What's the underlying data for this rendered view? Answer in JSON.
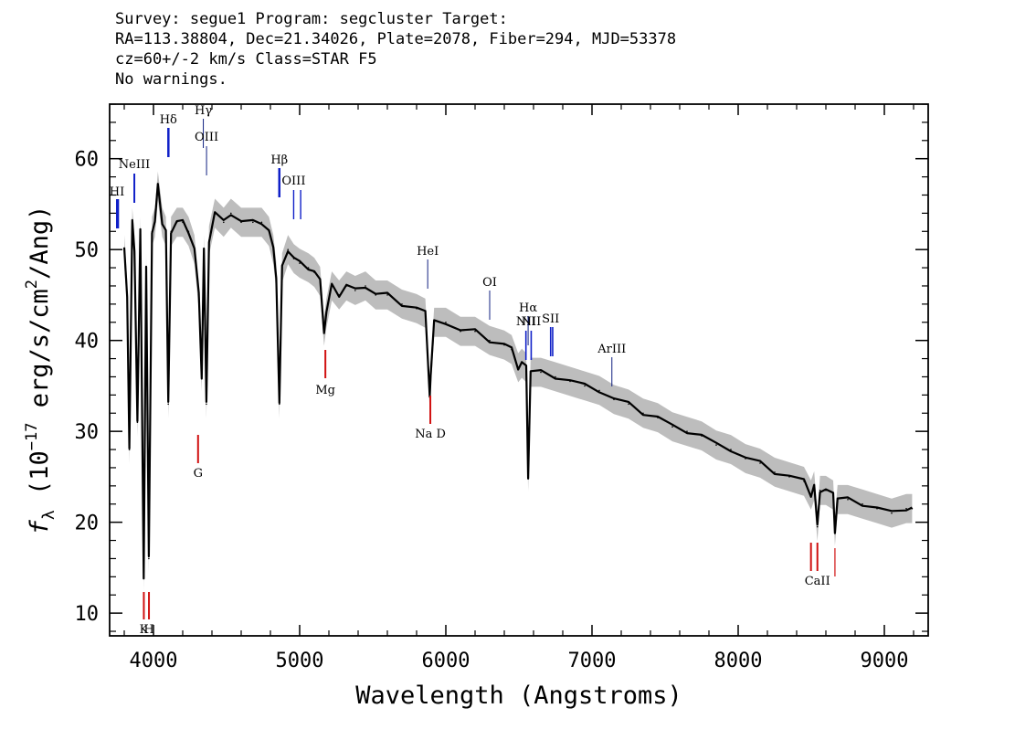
{
  "header": {
    "line1": "Survey: segue1 Program: segcluster Target:",
    "line2": "RA=113.38804, Dec=21.34026, Plate=2078, Fiber=294, MJD=53378",
    "line3": "cz=60+/-2 km/s Class=STAR F5",
    "line4": "No warnings."
  },
  "colors": {
    "spectrum": "#000000",
    "error_band": "#bdbdbd",
    "emission_marker": "#1020c8",
    "absorption_marker": "#d01010"
  },
  "chart_data": {
    "type": "line",
    "xlabel": "Wavelength (Angstroms)",
    "ylabel": "f_λ (10^-17 erg/s/cm^2/Ang)",
    "xlim": [
      3700,
      9300
    ],
    "ylim": [
      7.5,
      66
    ],
    "xticks": [
      4000,
      5000,
      6000,
      7000,
      8000,
      9000
    ],
    "yticks": [
      10,
      20,
      30,
      40,
      50,
      60
    ],
    "series": [
      {
        "values": [
          [
            3800,
            50
          ],
          [
            3820,
            45
          ],
          [
            3835,
            28
          ],
          [
            3855,
            53
          ],
          [
            3870,
            50
          ],
          [
            3890,
            31
          ],
          [
            3910,
            52
          ],
          [
            3933,
            14
          ],
          [
            3950,
            48
          ],
          [
            3968,
            16
          ],
          [
            3990,
            52
          ],
          [
            4010,
            53
          ],
          [
            4030,
            57
          ],
          [
            4060,
            53
          ],
          [
            4085,
            52
          ],
          [
            4101,
            33
          ],
          [
            4120,
            52
          ],
          [
            4160,
            53
          ],
          [
            4200,
            53
          ],
          [
            4240,
            52
          ],
          [
            4280,
            50
          ],
          [
            4310,
            45
          ],
          [
            4330,
            36
          ],
          [
            4345,
            50
          ],
          [
            4362,
            33
          ],
          [
            4380,
            51
          ],
          [
            4420,
            54
          ],
          [
            4480,
            53
          ],
          [
            4530,
            54
          ],
          [
            4600,
            53
          ],
          [
            4680,
            53
          ],
          [
            4740,
            53
          ],
          [
            4790,
            52
          ],
          [
            4820,
            50
          ],
          [
            4840,
            47
          ],
          [
            4861,
            33
          ],
          [
            4880,
            48
          ],
          [
            4920,
            50
          ],
          [
            4960,
            49
          ],
          [
            5000,
            48.5
          ],
          [
            5060,
            48
          ],
          [
            5100,
            47.5
          ],
          [
            5140,
            46.5
          ],
          [
            5167,
            41
          ],
          [
            5183,
            43
          ],
          [
            5220,
            46
          ],
          [
            5270,
            45
          ],
          [
            5320,
            46
          ],
          [
            5380,
            45.5
          ],
          [
            5450,
            46
          ],
          [
            5520,
            45
          ],
          [
            5600,
            45
          ],
          [
            5700,
            44
          ],
          [
            5800,
            43.5
          ],
          [
            5860,
            43
          ],
          [
            5890,
            34
          ],
          [
            5896,
            36
          ],
          [
            5920,
            42
          ],
          [
            6000,
            42
          ],
          [
            6100,
            41
          ],
          [
            6200,
            41
          ],
          [
            6300,
            40
          ],
          [
            6400,
            39.5
          ],
          [
            6450,
            39
          ],
          [
            6495,
            37
          ],
          [
            6520,
            37.5
          ],
          [
            6550,
            37
          ],
          [
            6563,
            25
          ],
          [
            6580,
            36.5
          ],
          [
            6650,
            36.5
          ],
          [
            6750,
            36
          ],
          [
            6850,
            35.5
          ],
          [
            6950,
            35
          ],
          [
            7050,
            34.5
          ],
          [
            7150,
            33.5
          ],
          [
            7250,
            33
          ],
          [
            7350,
            32
          ],
          [
            7450,
            31.5
          ],
          [
            7550,
            30.5
          ],
          [
            7650,
            30
          ],
          [
            7750,
            29.5
          ],
          [
            7850,
            28.5
          ],
          [
            7950,
            28
          ],
          [
            8050,
            27
          ],
          [
            8150,
            26.5
          ],
          [
            8250,
            25.5
          ],
          [
            8350,
            25
          ],
          [
            8450,
            24.5
          ],
          [
            8498,
            23
          ],
          [
            8520,
            24
          ],
          [
            8542,
            19.5
          ],
          [
            8560,
            23.5
          ],
          [
            8600,
            23.5
          ],
          [
            8650,
            23
          ],
          [
            8662,
            19
          ],
          [
            8680,
            22.5
          ],
          [
            8750,
            22.5
          ],
          [
            8850,
            22
          ],
          [
            8950,
            21.5
          ],
          [
            9050,
            21
          ],
          [
            9150,
            21.5
          ],
          [
            9190,
            21.5
          ]
        ]
      }
    ],
    "emission_lines": [
      {
        "label": "HI",
        "wave": 3750,
        "color": "blue"
      },
      {
        "label": "NeIII",
        "wave": 3869,
        "color": "blue"
      },
      {
        "label": "Hδ",
        "wave": 4102,
        "color": "blue"
      },
      {
        "label": "Hγ",
        "wave": 4341,
        "color": "navy"
      },
      {
        "label": "OIII",
        "wave": 4363,
        "color": "navy"
      },
      {
        "label": "Hβ",
        "wave": 4861,
        "color": "blue"
      },
      {
        "label": "OIII",
        "wave": 4959,
        "color": "blue"
      },
      {
        "label": "HeI",
        "wave": 5876,
        "color": "navy"
      },
      {
        "label": "OI",
        "wave": 6300,
        "color": "navy"
      },
      {
        "label": "NII",
        "wave": 6548,
        "color": "blue"
      },
      {
        "label": "Hα",
        "wave": 6563,
        "color": "navy"
      },
      {
        "label": "NII",
        "wave": 6584,
        "color": "blue"
      },
      {
        "label": "SII",
        "wave": 6717,
        "color": "blue"
      },
      {
        "label": "ArIII",
        "wave": 7136,
        "color": "navy"
      }
    ],
    "absorption_lines": [
      {
        "label": "K",
        "wave": 3934,
        "color": "red"
      },
      {
        "label": "H",
        "wave": 3969,
        "color": "red"
      },
      {
        "label": "G",
        "wave": 4305,
        "color": "red"
      },
      {
        "label": "Mg",
        "wave": 5176,
        "color": "red"
      },
      {
        "label": "Na D",
        "wave": 5894,
        "color": "red"
      },
      {
        "label": "CaII",
        "wave": 8498,
        "color": "red"
      }
    ]
  }
}
